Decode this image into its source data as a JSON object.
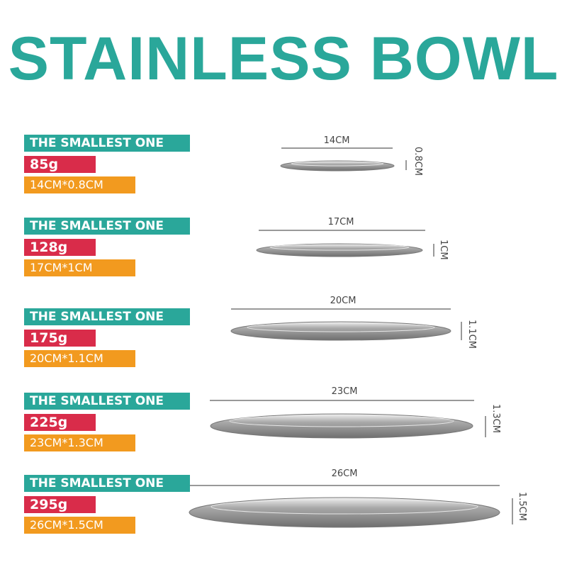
{
  "title": "STAINLESS BOWL",
  "items": [
    {
      "name": "THE SMALLEST ONE",
      "weight": "85g",
      "size": "14CM*0.8CM",
      "width_label": "14CM",
      "height_label": "0.8CM"
    },
    {
      "name": "THE SMALLEST ONE",
      "weight": "128g",
      "size": "17CM*1CM",
      "width_label": "17CM",
      "height_label": "1CM"
    },
    {
      "name": "THE SMALLEST ONE",
      "weight": "175g",
      "size": "20CM*1.1CM",
      "width_label": "20CM",
      "height_label": "1.1CM"
    },
    {
      "name": "THE SMALLEST ONE",
      "weight": "225g",
      "size": "23CM*1.3CM",
      "width_label": "23CM",
      "height_label": "1.3CM"
    },
    {
      "name": "THE SMALLEST ONE",
      "weight": "295g",
      "size": "26CM*1.5CM",
      "width_label": "26CM",
      "height_label": "1.5CM"
    }
  ],
  "colors": {
    "teal": "#2aa79a",
    "red": "#d92c4a",
    "orange": "#f29a1f"
  }
}
